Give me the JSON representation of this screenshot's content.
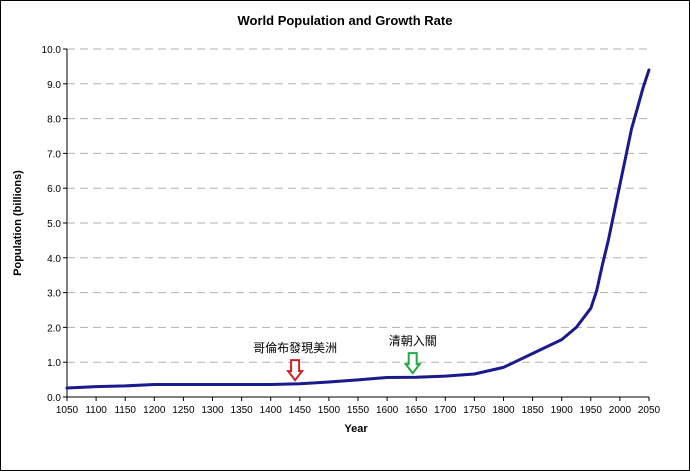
{
  "chart_data": {
    "type": "line",
    "title": "World Population and Growth Rate",
    "xlabel": "Year",
    "ylabel": "Population (billions)",
    "xlim": [
      1050,
      2050
    ],
    "ylim": [
      0,
      10
    ],
    "grid": "horizontal-dashed",
    "legend": "none",
    "x_ticks": [
      "1050",
      "1100",
      "1150",
      "1200",
      "1250",
      "1300",
      "1350",
      "1400",
      "1450",
      "1500",
      "1550",
      "1600",
      "1650",
      "1700",
      "1750",
      "1800",
      "1850",
      "1900",
      "1950",
      "2000",
      "2050"
    ],
    "y_ticks": [
      "0.0",
      "1.0",
      "2.0",
      "3.0",
      "4.0",
      "5.0",
      "6.0",
      "7.0",
      "8.0",
      "9.0",
      "10.0"
    ],
    "series": [
      {
        "color": "#1a1a8c",
        "x": [
          1050,
          1100,
          1150,
          1200,
          1250,
          1300,
          1350,
          1400,
          1450,
          1500,
          1550,
          1600,
          1650,
          1700,
          1750,
          1800,
          1850,
          1900,
          1925,
          1950,
          1960,
          1970,
          1980,
          1990,
          2000,
          2010,
          2020,
          2030,
          2040,
          2050
        ],
        "y": [
          0.26,
          0.3,
          0.32,
          0.36,
          0.36,
          0.36,
          0.36,
          0.36,
          0.38,
          0.43,
          0.49,
          0.56,
          0.57,
          0.6,
          0.66,
          0.85,
          1.25,
          1.65,
          2.0,
          2.55,
          3.05,
          3.8,
          4.5,
          5.3,
          6.1,
          6.9,
          7.7,
          8.3,
          8.9,
          9.4
        ]
      }
    ],
    "annotations": [
      {
        "text": "哥倫布發現美洲",
        "x": 1442,
        "y": 0.4,
        "arrow_color": "#cc2222"
      },
      {
        "text": "清朝入關",
        "x": 1644,
        "y": 0.6,
        "arrow_color": "#22aa44"
      }
    ]
  }
}
